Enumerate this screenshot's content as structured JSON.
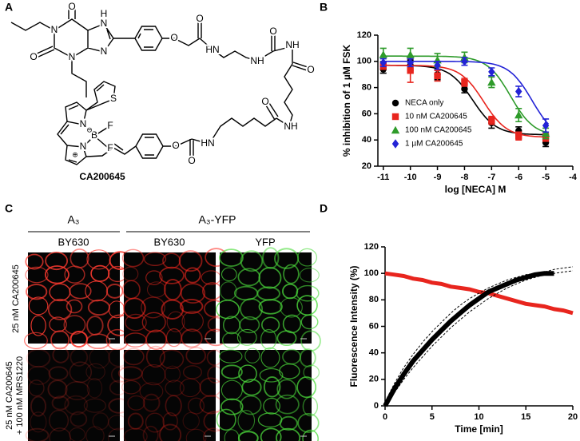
{
  "panel_labels": [
    "A",
    "B",
    "C",
    "D"
  ],
  "structure": {
    "atoms": [
      "O",
      "N",
      "H",
      "N",
      "O",
      "N",
      "N",
      "O",
      "O",
      "HN",
      "NH",
      "O",
      "NH",
      "O",
      "NH",
      "O",
      "HN",
      "O",
      "O",
      "S",
      "N",
      "N",
      "B",
      "F",
      "F",
      "⊖",
      "⊕"
    ],
    "compound": "CA200645"
  },
  "chart_data": [
    {
      "type": "line",
      "xlabel": "log [NECA] M",
      "ylabel": "% inhibition of 1 µM FSK",
      "x": [
        -11,
        -10,
        -9,
        -8,
        -7,
        -6,
        -5
      ],
      "xlim": [
        -11.2,
        -4
      ],
      "xticks": [
        -11,
        -10,
        -9,
        -8,
        -7,
        -6,
        -5,
        -4
      ],
      "ylim": [
        20,
        120
      ],
      "yticks": [
        20,
        40,
        60,
        80,
        100,
        120
      ],
      "legend": "center left",
      "series": [
        {
          "name": "NECA only",
          "color": "#000000",
          "marker": "circle",
          "values": [
            94,
            97,
            90,
            79,
            53,
            47,
            38
          ],
          "errors": [
            3,
            4,
            4,
            3,
            4,
            3,
            3
          ],
          "fit": {
            "top": 97,
            "bottom": 44,
            "log_ec50": -7.7
          }
        },
        {
          "name": "10 nM CA200645",
          "color": "#e8251e",
          "marker": "square",
          "values": [
            97,
            93,
            89,
            84,
            55,
            43,
            42
          ],
          "errors": [
            3,
            9,
            4,
            3,
            3,
            3,
            3
          ],
          "fit": {
            "top": 97,
            "bottom": 42,
            "log_ec50": -7.3
          }
        },
        {
          "name": "100 nM CA200645",
          "color": "#2e9b2a",
          "marker": "triangle",
          "values": [
            105,
            105,
            101,
            103,
            84,
            59,
            45
          ],
          "errors": [
            5,
            5,
            5,
            4,
            4,
            5,
            4
          ],
          "fit": {
            "top": 104,
            "bottom": 43,
            "log_ec50": -6.3
          }
        },
        {
          "name": "1 µM CA200645",
          "color": "#2323d6",
          "marker": "diamond",
          "values": [
            99,
            99,
            97,
            100,
            92,
            77,
            51
          ],
          "errors": [
            3,
            3,
            3,
            3,
            3,
            4,
            5
          ],
          "fit": {
            "top": 100,
            "bottom": 40,
            "log_ec50": -5.5
          }
        }
      ]
    },
    {
      "type": "line",
      "xlabel": "Time [min]",
      "ylabel": "Fluorescence Intensity (%)",
      "x": [
        0,
        1,
        2,
        3,
        4,
        5,
        6,
        7,
        8,
        9,
        10,
        11,
        12,
        13,
        14,
        15,
        16,
        17,
        18,
        19,
        20
      ],
      "xlim": [
        0,
        20
      ],
      "xticks": [
        0,
        5,
        10,
        15,
        20
      ],
      "ylim": [
        0,
        120
      ],
      "yticks": [
        0,
        20,
        40,
        60,
        80,
        100,
        120
      ],
      "series": [
        {
          "color": "#e8251e",
          "linewidth": 5,
          "values": [
            100,
            99,
            98,
            96,
            95,
            93,
            92,
            90,
            89,
            88,
            86,
            85,
            83,
            81,
            79,
            77,
            76,
            75,
            73,
            72,
            70
          ]
        },
        {
          "color": "#000000",
          "linewidth": 6,
          "values": [
            0,
            13,
            24,
            34,
            42,
            50,
            57,
            64,
            70,
            76,
            81,
            86,
            89,
            92,
            95,
            97,
            99,
            100,
            100,
            null,
            null
          ]
        },
        {
          "color": "#000000",
          "linewidth": 1,
          "linestyle": "dashed",
          "values": [
            3,
            17,
            29,
            39,
            48,
            56,
            63,
            70,
            76,
            81,
            85,
            89,
            92,
            95,
            97,
            99,
            100,
            101,
            103,
            104,
            105
          ]
        },
        {
          "color": "#000000",
          "linewidth": 1,
          "linestyle": "dashed",
          "values": [
            0,
            10,
            20,
            29,
            37,
            45,
            52,
            59,
            65,
            71,
            76,
            81,
            85,
            89,
            92,
            95,
            97,
            99,
            100,
            101,
            102
          ]
        }
      ]
    }
  ],
  "microscopy": {
    "groups": [
      "A₃",
      "A₃-YFP"
    ],
    "columns": [
      "BY630",
      "BY630",
      "YFP"
    ],
    "rows": [
      [
        "25 nM CA200645"
      ],
      [
        "25 nM CA200645",
        "+ 100 nM MRS1220"
      ]
    ]
  }
}
